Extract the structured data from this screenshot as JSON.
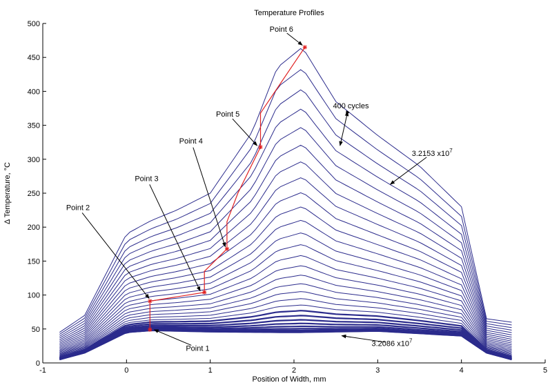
{
  "chart_data": {
    "type": "line",
    "title": "Temperature Profiles",
    "xlabel": "Position of Width, mm",
    "ylabel": "Δ Temperature, °C",
    "xlim": [
      -1,
      5
    ],
    "ylim": [
      0,
      500
    ],
    "xticks": [
      -1,
      0,
      1,
      2,
      3,
      4,
      5
    ],
    "xtick_labels": [
      "-1",
      "0",
      "1",
      "2",
      "3",
      "4",
      "5"
    ],
    "yticks": [
      0,
      50,
      100,
      150,
      200,
      250,
      300,
      350,
      400,
      450,
      500
    ],
    "ytick_labels": [
      "0",
      "50",
      "100",
      "150",
      "200",
      "250",
      "300",
      "350",
      "400",
      "450",
      "500"
    ],
    "grid": false,
    "line_color": "#2b2b8c",
    "highlight_color": "#e02020",
    "profiles": {
      "first": {
        "x": [
          -0.8,
          -0.5,
          0.0,
          0.3,
          1.0,
          2.0,
          3.0,
          4.0,
          4.3,
          4.6
        ],
        "y": [
          5,
          15,
          45,
          48,
          46,
          45,
          47,
          40,
          15,
          5
        ]
      },
      "last": {
        "x": [
          -0.8,
          -0.5,
          0.0,
          0.3,
          0.6,
          1.0,
          1.5,
          1.8,
          2.1,
          2.5,
          3.0,
          3.5,
          4.0,
          4.3,
          4.6
        ],
        "y": [
          45,
          70,
          190,
          210,
          225,
          250,
          340,
          435,
          465,
          385,
          335,
          290,
          230,
          65,
          60
        ]
      },
      "count": 30
    },
    "series": [
      {
        "name": "Point path",
        "x": [
          0.28,
          0.28,
          0.93,
          0.93,
          1.2,
          1.2,
          1.33,
          1.6,
          1.6,
          2.13
        ],
        "y": [
          49,
          91,
          104,
          135,
          168,
          208,
          250,
          318,
          368,
          465
        ]
      }
    ],
    "points": [
      {
        "label": "Point 1",
        "x": 0.28,
        "y": 49
      },
      {
        "label": "Point 2",
        "x": 0.28,
        "y": 91
      },
      {
        "label": "Point 3",
        "x": 0.93,
        "y": 104
      },
      {
        "label": "Point 4",
        "x": 1.2,
        "y": 168
      },
      {
        "label": "Point 5",
        "x": 1.6,
        "y": 318
      },
      {
        "label": "Point 6",
        "x": 2.13,
        "y": 465
      }
    ],
    "annotations": [
      {
        "text": "Point 1",
        "tx": 0.85,
        "ty": 18,
        "ax": 0.33,
        "ay": 49
      },
      {
        "text": "Point 2",
        "tx": -0.58,
        "ty": 225,
        "ax": 0.27,
        "ay": 95
      },
      {
        "text": "Point 3",
        "tx": 0.24,
        "ty": 268,
        "ax": 0.88,
        "ay": 106
      },
      {
        "text": "Point 4",
        "tx": 0.77,
        "ty": 323,
        "ax": 1.18,
        "ay": 171
      },
      {
        "text": "Point 5",
        "tx": 1.21,
        "ty": 363,
        "ax": 1.56,
        "ay": 320
      },
      {
        "text": "Point 6",
        "tx": 1.85,
        "ty": 488,
        "ax": 2.1,
        "ay": 468
      },
      {
        "text": "400 cycles",
        "tx": 2.68,
        "ty": 375,
        "ax": 2.62,
        "ay": 365,
        "ax2": 2.55,
        "ay2": 320
      },
      {
        "text": "3.2153 x10",
        "sup": "7",
        "tx": 3.65,
        "ty": 305,
        "ax": 3.15,
        "ay": 263
      },
      {
        "text": "3.2086 x10",
        "sup": "7",
        "tx": 3.17,
        "ty": 25,
        "ax": 2.57,
        "ay": 40
      }
    ]
  }
}
